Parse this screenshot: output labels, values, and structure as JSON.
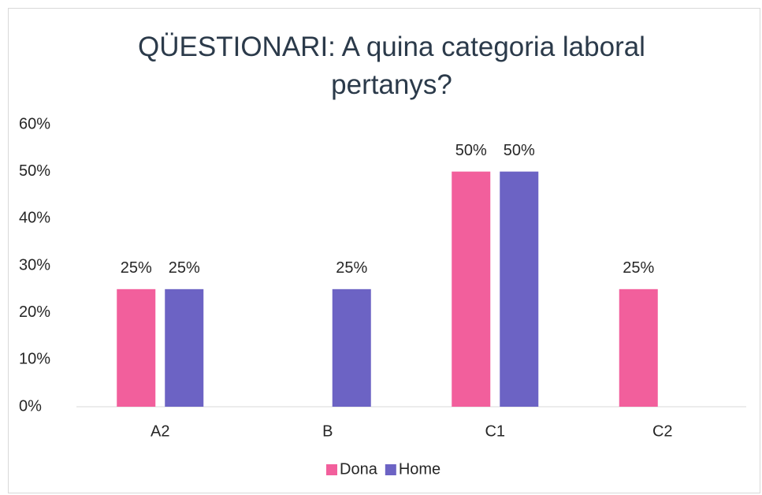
{
  "chart_data": {
    "type": "bar",
    "title": "QÜESTIONARI: A quina categoria laboral pertanys?",
    "categories": [
      "A2",
      "B",
      "C1",
      "C2"
    ],
    "series": [
      {
        "name": "Dona",
        "color": "#f25f9c",
        "values": [
          25,
          null,
          50,
          25
        ],
        "value_labels": [
          "25%",
          null,
          "50%",
          "25%"
        ]
      },
      {
        "name": "Home",
        "color": "#6c63c4",
        "values": [
          25,
          25,
          50,
          null
        ],
        "value_labels": [
          "25%",
          "25%",
          "50%",
          null
        ]
      }
    ],
    "ylim": [
      0,
      60
    ],
    "yticks": [
      {
        "value": 0,
        "label": "0%"
      },
      {
        "value": 10,
        "label": "10%"
      },
      {
        "value": 20,
        "label": "20%"
      },
      {
        "value": 30,
        "label": "30%"
      },
      {
        "value": 40,
        "label": "40%"
      },
      {
        "value": 50,
        "label": "50%"
      },
      {
        "value": 60,
        "label": "60%"
      }
    ],
    "grid": false,
    "legend": "bottom"
  }
}
